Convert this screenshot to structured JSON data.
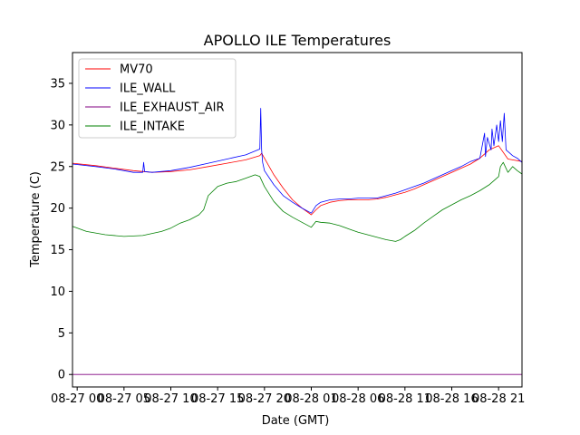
{
  "chart_data": {
    "type": "line",
    "title": "APOLLO ILE Temperatures",
    "xlabel": "Date (GMT)",
    "ylabel": "Temperature (C)",
    "x_unit": "hours since 08-27 00:00 GMT",
    "xlim": [
      -0.5,
      47.5
    ],
    "ylim": [
      -1.5,
      38.7
    ],
    "grid": false,
    "legend_position": "top-left",
    "x_ticks": [
      {
        "value": 0,
        "label": "08-27 00"
      },
      {
        "value": 5,
        "label": "08-27 05"
      },
      {
        "value": 10,
        "label": "08-27 10"
      },
      {
        "value": 15,
        "label": "08-27 15"
      },
      {
        "value": 20,
        "label": "08-27 20"
      },
      {
        "value": 25,
        "label": "08-28 01"
      },
      {
        "value": 30,
        "label": "08-28 06"
      },
      {
        "value": 35,
        "label": "08-28 11"
      },
      {
        "value": 40,
        "label": "08-28 16"
      },
      {
        "value": 45,
        "label": "08-28 21"
      }
    ],
    "y_ticks": [
      {
        "value": 0,
        "label": "0"
      },
      {
        "value": 5,
        "label": "5"
      },
      {
        "value": 10,
        "label": "10"
      },
      {
        "value": 15,
        "label": "15"
      },
      {
        "value": 20,
        "label": "20"
      },
      {
        "value": 25,
        "label": "25"
      },
      {
        "value": 30,
        "label": "30"
      },
      {
        "value": 35,
        "label": "35"
      }
    ],
    "series": [
      {
        "name": "MV70",
        "color": "#ff0000",
        "x": [
          -0.5,
          2,
          4,
          6,
          8,
          10,
          12,
          14,
          16,
          18,
          19.5,
          19.7,
          20,
          21,
          22,
          23,
          24,
          25,
          25.5,
          26,
          27,
          28,
          29,
          30,
          31,
          32,
          33,
          34,
          35,
          36,
          37,
          38,
          39,
          40,
          41,
          42,
          43,
          44,
          45,
          46,
          47.5
        ],
        "y": [
          25.4,
          25.1,
          24.8,
          24.5,
          24.3,
          24.4,
          24.6,
          25.0,
          25.4,
          25.8,
          26.3,
          26.6,
          26.0,
          24.0,
          22.4,
          21.0,
          20.0,
          19.2,
          19.8,
          20.3,
          20.7,
          20.9,
          21.0,
          21.0,
          21.0,
          21.1,
          21.3,
          21.6,
          21.9,
          22.3,
          22.8,
          23.3,
          23.8,
          24.3,
          24.8,
          25.3,
          26.0,
          27.0,
          27.5,
          25.9,
          25.6
        ]
      },
      {
        "name": "ILE_WALL",
        "color": "#0000ff",
        "x": [
          -0.5,
          2,
          4,
          6,
          7,
          7.1,
          7.2,
          8,
          10,
          12,
          14,
          16,
          18,
          19.5,
          19.6,
          19.7,
          19.8,
          20,
          21,
          22,
          23,
          24,
          25,
          25.5,
          26,
          27,
          28,
          29,
          30,
          31,
          32,
          33,
          34,
          35,
          36,
          37,
          38,
          39,
          40,
          41,
          42,
          43,
          43.5,
          43.6,
          43.8,
          44.2,
          44.3,
          44.5,
          44.8,
          45.0,
          45.2,
          45.4,
          45.6,
          45.8,
          46,
          46.5,
          47,
          47.5
        ],
        "y": [
          25.3,
          25.0,
          24.7,
          24.3,
          24.3,
          25.5,
          24.4,
          24.3,
          24.5,
          24.9,
          25.4,
          25.9,
          26.4,
          27.1,
          32.0,
          27.0,
          25.5,
          24.5,
          22.8,
          21.5,
          20.7,
          20.0,
          19.4,
          20.3,
          20.7,
          21.0,
          21.1,
          21.1,
          21.2,
          21.2,
          21.2,
          21.5,
          21.8,
          22.2,
          22.6,
          23.0,
          23.5,
          24.0,
          24.5,
          25.0,
          25.6,
          26.0,
          29.0,
          26.2,
          28.5,
          27.0,
          29.5,
          27.5,
          30.0,
          28.0,
          30.5,
          28.0,
          31.4,
          27.0,
          26.8,
          26.3,
          26.0,
          25.5
        ]
      },
      {
        "name": "ILE_EXHAUST_AIR",
        "color": "#800080",
        "x": [
          -0.5,
          47.5
        ],
        "y": [
          0.0,
          0.0
        ]
      },
      {
        "name": "ILE_INTAKE",
        "color": "#008000",
        "x": [
          -0.5,
          1,
          3,
          5,
          7,
          9,
          10,
          11,
          12,
          13,
          13.5,
          14,
          15,
          16,
          17,
          18,
          19,
          19.5,
          20,
          21,
          22,
          23,
          24,
          25,
          25.5,
          26,
          27,
          28,
          29,
          30,
          31,
          32,
          33,
          34,
          34.5,
          35,
          36,
          37,
          38,
          39,
          40,
          41,
          42,
          43,
          44,
          45,
          45.2,
          45.5,
          46,
          46.5,
          47,
          47.5
        ],
        "y": [
          17.8,
          17.2,
          16.8,
          16.6,
          16.7,
          17.2,
          17.6,
          18.2,
          18.6,
          19.2,
          19.8,
          21.5,
          22.6,
          23.0,
          23.2,
          23.6,
          24.0,
          23.8,
          22.6,
          20.8,
          19.6,
          18.9,
          18.3,
          17.7,
          18.4,
          18.3,
          18.2,
          17.9,
          17.5,
          17.1,
          16.8,
          16.5,
          16.2,
          16.0,
          16.2,
          16.6,
          17.3,
          18.2,
          19.0,
          19.8,
          20.4,
          21.0,
          21.5,
          22.1,
          22.8,
          23.8,
          25.0,
          25.5,
          24.3,
          25.0,
          24.5,
          24.1
        ]
      }
    ],
    "legend": [
      {
        "label": "MV70",
        "color": "#ff0000"
      },
      {
        "label": "ILE_WALL",
        "color": "#0000ff"
      },
      {
        "label": "ILE_EXHAUST_AIR",
        "color": "#800080"
      },
      {
        "label": "ILE_INTAKE",
        "color": "#008000"
      }
    ]
  }
}
